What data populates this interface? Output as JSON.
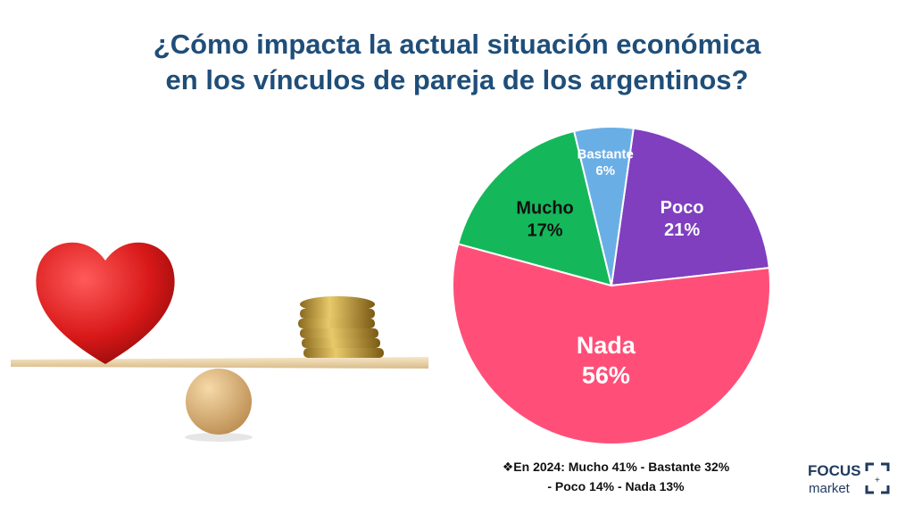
{
  "title": {
    "line1": "¿Cómo impacta la actual situación económica",
    "line2": "en los vínculos de pareja de los argentinos?"
  },
  "chart_data": {
    "type": "pie",
    "start_angle_deg": 8,
    "slices": [
      {
        "label": "Poco",
        "value": 21,
        "display": "21%",
        "color": "#7f3fbf",
        "label_color": "#ffffff"
      },
      {
        "label": "Nada",
        "value": 56,
        "display": "56%",
        "color": "#ff4f78",
        "label_color": "#ffffff"
      },
      {
        "label": "Mucho",
        "value": 17,
        "display": "17%",
        "color": "#14b85a",
        "label_color": "#111111"
      },
      {
        "label": "Bastante",
        "value": 6,
        "display": "6%",
        "color": "#6aaee6",
        "label_color": "#ffffff"
      }
    ]
  },
  "note": {
    "line1": "❖En 2024: Mucho 41% - Bastante 32%",
    "line2": "- Poco 14% - Nada 13%"
  },
  "logo": {
    "word1": "FOCUS",
    "word2": "market"
  },
  "illustration": {
    "icons": [
      "heart-icon",
      "coin-stack-icon",
      "balance-scale-icon"
    ]
  }
}
